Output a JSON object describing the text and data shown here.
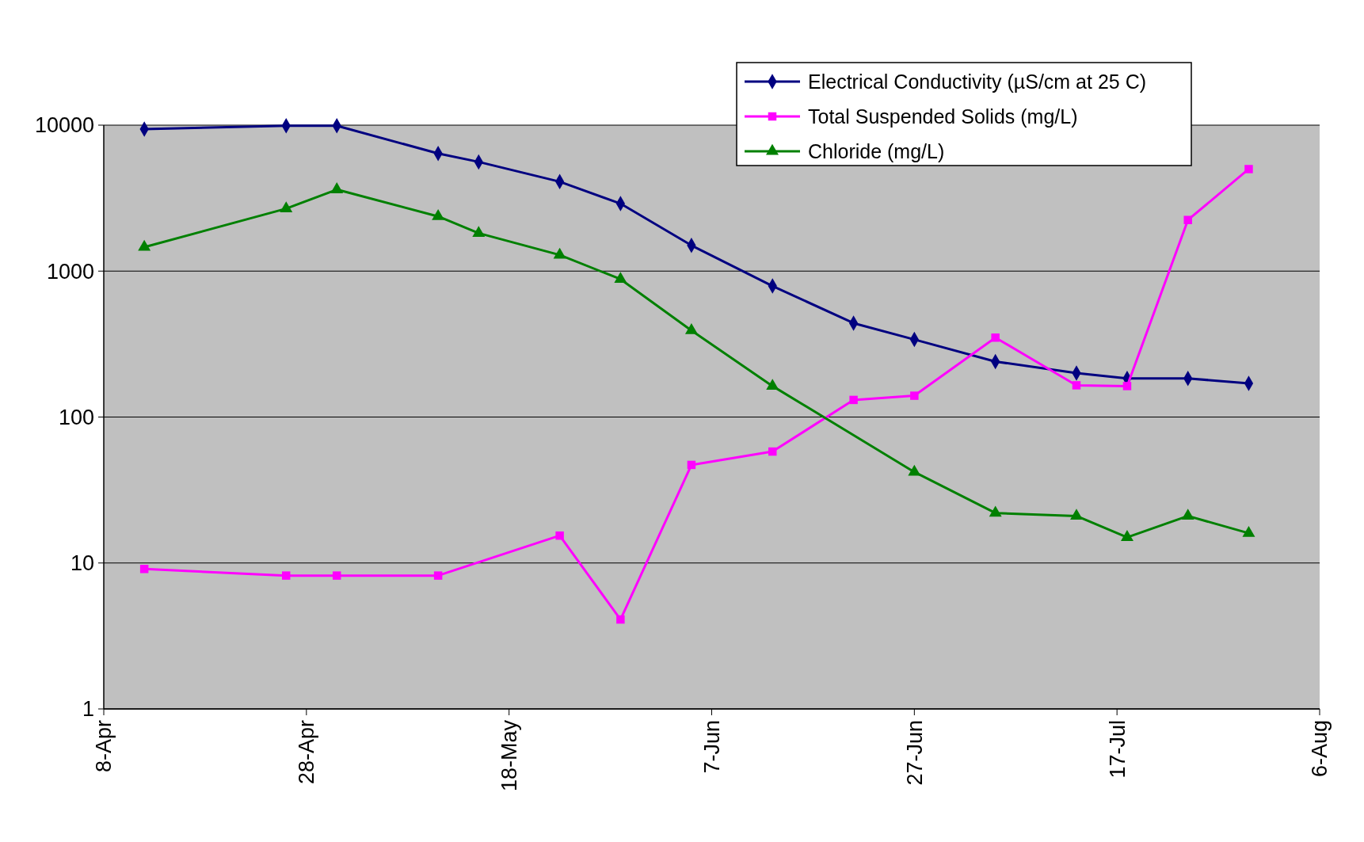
{
  "chart_data": {
    "type": "line",
    "log": "y",
    "grid": "y",
    "legend": "top right",
    "line_style": "solid",
    "ylim": [
      1,
      10000
    ],
    "yticks": [
      1,
      10,
      100,
      1000,
      10000
    ],
    "xlim": [
      "--04-08",
      "--08-06"
    ],
    "xticks": [
      {
        "value": "--04-08",
        "label": "8-Apr"
      },
      {
        "value": "--04-28",
        "label": "28-Apr"
      },
      {
        "value": "--05-18",
        "label": "18-May"
      },
      {
        "value": "--06-07",
        "label": "7-Jun"
      },
      {
        "value": "--06-27",
        "label": "27-Jun"
      },
      {
        "value": "--07-17",
        "label": "17-Jul"
      },
      {
        "value": "--08-06",
        "label": "6-Aug"
      }
    ],
    "series": [
      {
        "name": "Electrical Conductivity  (µS/cm at 25 C)",
        "color": "#000080",
        "marker": "diamond",
        "x": [
          "--04-12",
          "--04-26",
          "--05-01",
          "--05-11",
          "--05-15",
          "--05-23",
          "--05-29",
          "--06-05",
          "--06-13",
          "--06-21",
          "--06-27",
          "--07-05",
          "--07-13",
          "--07-18",
          "--07-24",
          "--07-30"
        ],
        "values": [
          9400,
          9900,
          9900,
          6400,
          5600,
          4100,
          2900,
          1500,
          790,
          440,
          340,
          240,
          200,
          184,
          184,
          170
        ]
      },
      {
        "name": "Total Suspended Solids (mg/L)",
        "color": "#ff00ff",
        "marker": "square",
        "x": [
          "--04-12",
          "--04-26",
          "--05-01",
          "--05-11",
          "--05-23",
          "--05-29",
          "--06-05",
          "--06-13",
          "--06-21",
          "--06-27",
          "--07-05",
          "--07-13",
          "--07-18",
          "--07-24",
          "--07-30"
        ],
        "values": [
          9.1,
          8.2,
          8.2,
          8.2,
          15.4,
          4.1,
          47,
          58,
          131,
          140,
          350,
          165,
          163,
          2240,
          5000
        ]
      },
      {
        "name": "Chloride (mg/L)",
        "color": "#008000",
        "marker": "triangle",
        "x": [
          "--04-12",
          "--04-26",
          "--05-01",
          "--05-11",
          "--05-15",
          "--05-23",
          "--05-29",
          "--06-05",
          "--06-13",
          "--06-27",
          "--07-05",
          "--07-13",
          "--07-18",
          "--07-24",
          "--07-30"
        ],
        "values": [
          1460,
          2680,
          3620,
          2370,
          1820,
          1290,
          880,
          392,
          163,
          42,
          22,
          21,
          15,
          21,
          16
        ]
      }
    ]
  }
}
